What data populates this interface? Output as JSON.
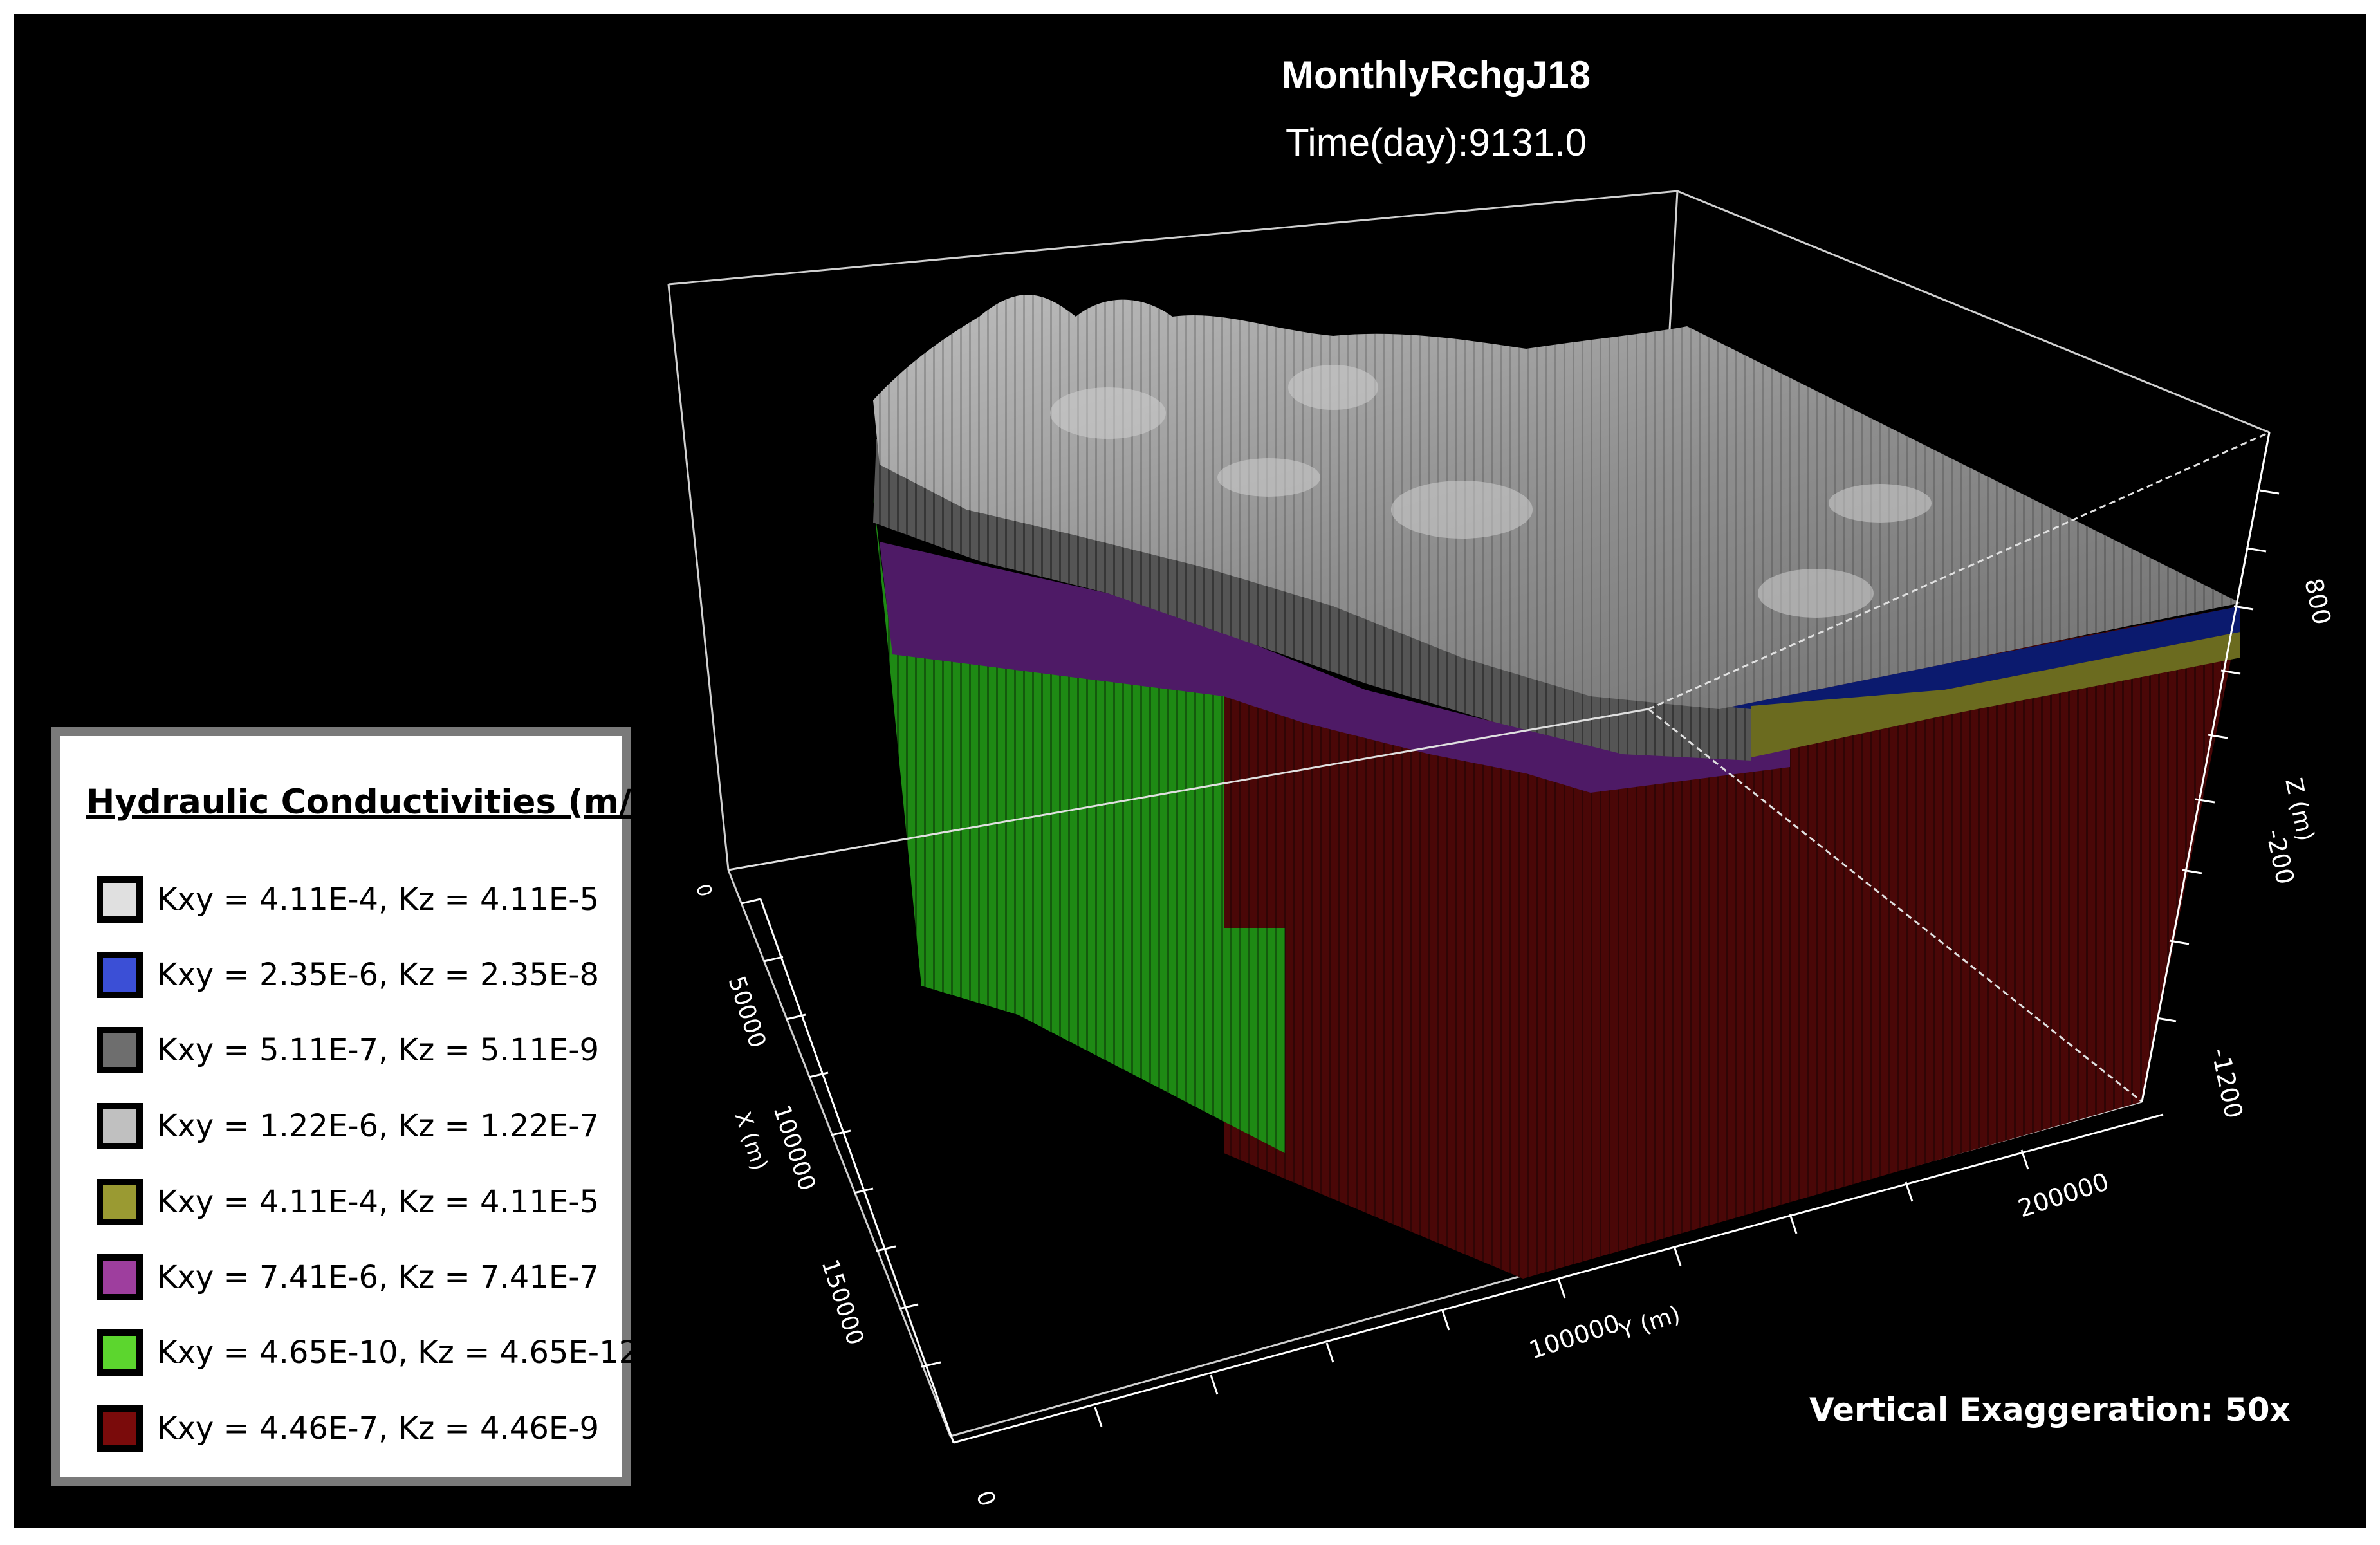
{
  "title": "MonthlyRchgJ18",
  "time_label": "Time(day):9131.0",
  "vertical_exaggeration": "Vertical Exaggeration: 50x",
  "legend": {
    "title": "Hydraulic Conductivities (m/s)",
    "items": [
      {
        "label": "Kxy = 4.11E-4, Kz = 4.11E-5",
        "color": "#e0e0e0"
      },
      {
        "label": "Kxy = 2.35E-6, Kz = 2.35E-8",
        "color": "#3b4fd6"
      },
      {
        "label": "Kxy = 5.11E-7, Kz = 5.11E-9",
        "color": "#6e6e6e"
      },
      {
        "label": "Kxy = 1.22E-6, Kz = 1.22E-7",
        "color": "#c0c0c0"
      },
      {
        "label": "Kxy = 4.11E-4, Kz = 4.11E-5",
        "color": "#9a9a32"
      },
      {
        "label": "Kxy = 7.41E-6, Kz = 7.41E-7",
        "color": "#9e3e9e"
      },
      {
        "label": "Kxy = 4.65E-10, Kz = 4.65E-12",
        "color": "#5cd62e"
      },
      {
        "label": "Kxy = 4.46E-7, Kz = 4.46E-9",
        "color": "#7a0b0b"
      }
    ]
  },
  "axes": {
    "x": {
      "label": "X (m)",
      "ticks": [
        "0",
        "50000",
        "100000",
        "150000"
      ]
    },
    "y": {
      "label": "Y (m)",
      "ticks": [
        "100000",
        "200000"
      ]
    },
    "z": {
      "label": "Z (m)",
      "ticks": [
        "800",
        "-200",
        "-1200"
      ]
    },
    "origin_label": "0"
  },
  "model_colors": {
    "surface": "#8c8c8c",
    "green_layer": "#1e8a14",
    "red_layer": "#4a0707",
    "blue_layer": "#0b1a6e",
    "purple_layer": "#4e1a66",
    "olive_layer": "#6b6b1f"
  }
}
